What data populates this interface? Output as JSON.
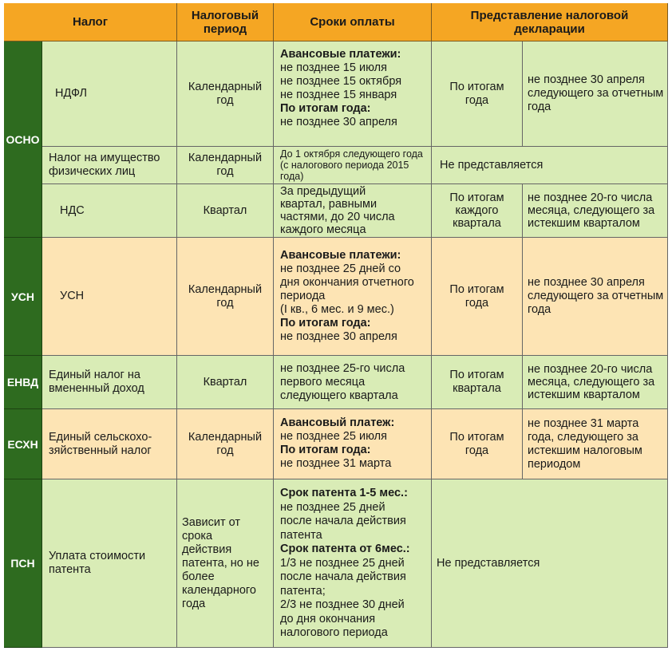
{
  "header": {
    "tax": "Налог",
    "period": "Налоговый период",
    "payment": "Сроки оплаты",
    "declaration": "Представление налоговой декларации"
  },
  "regimes": {
    "osno": "ОСНО",
    "usn": "УСН",
    "envd": "ЕНВД",
    "eshn": "ЕСХН",
    "psn": "ПСН"
  },
  "rows": {
    "ndfl": {
      "tax": "НДФЛ",
      "period": "Календарный год",
      "payment": [
        {
          "text": "Авансовые платежи:",
          "bold": true
        },
        {
          "text": "не позднее 15 июля",
          "bold": false
        },
        {
          "text": "не позднее 15 октября",
          "bold": false
        },
        {
          "text": "не позднее 15 января",
          "bold": false
        },
        {
          "text": "По итогам года:",
          "bold": true
        },
        {
          "text": "не позднее 30 апреля",
          "bold": false
        }
      ],
      "decl_when": "По итогам года",
      "decl_deadline": "не позднее 30 апреля следующего за отчетным года"
    },
    "property": {
      "tax": "Налог на имущество физических лиц",
      "period": "Календарный год",
      "payment": "До 1 октября следующего года (с налогового периода 2015 года)",
      "declaration": "Не представляется"
    },
    "nds": {
      "tax": "НДС",
      "period": "Квартал",
      "payment": "За предыдущий квартал, равными частями, до 20 числа каждого месяца",
      "decl_when": "По итогам каждого квартала",
      "decl_deadline": "не позднее 20-го числа месяца, следующего за истекшим кварталом"
    },
    "usn": {
      "tax": "УСН",
      "period": "Календарный год",
      "payment": [
        {
          "text": "Авансовые платежи:",
          "bold": true
        },
        {
          "text": "не позднее 25 дней со",
          "bold": false
        },
        {
          "text": "дня окончания отчетного",
          "bold": false
        },
        {
          "text": "периода",
          "bold": false
        },
        {
          "text": "(I кв., 6 мес. и 9 мес.)",
          "bold": false
        },
        {
          "text": "По итогам года:",
          "bold": true
        },
        {
          "text": "не позднее 30 апреля",
          "bold": false
        }
      ],
      "decl_when": "По итогам года",
      "decl_deadline": "не позднее 30 апреля следующего за отчетным года"
    },
    "envd": {
      "tax": "Единый налог на вмененный доход",
      "period": "Квартал",
      "payment": "не позднее 25-го числа первого месяца следующего квартала",
      "decl_when": "По итогам квартала",
      "decl_deadline": "не позднее 20-го числа месяца, следующего за истекшим кварталом"
    },
    "eshn": {
      "tax": "Единый сельскохо-зяйственный налог",
      "period": "Календарный год",
      "payment": [
        {
          "text": "Авансовый платеж:",
          "bold": true
        },
        {
          "text": "не позднее 25 июля",
          "bold": false
        },
        {
          "text": "По итогам года:",
          "bold": true
        },
        {
          "text": "не позднее 31 марта",
          "bold": false
        }
      ],
      "decl_when": "По итогам года",
      "decl_deadline": "не позднее 31 марта года, следующего за истекшим налоговым периодом"
    },
    "psn": {
      "tax": "Уплата стоимости патента",
      "period": "Зависит от срока действия патента, но не более календарного года",
      "payment": [
        {
          "text": "Срок патента 1-5 мес.:",
          "bold": true
        },
        {
          "text": "не позднее 25 дней",
          "bold": false
        },
        {
          "text": "после начала действия",
          "bold": false
        },
        {
          "text": "патента",
          "bold": false
        },
        {
          "text": "Срок патента от 6мес.:",
          "bold": true
        },
        {
          "text": "1/3 не позднее 25 дней",
          "bold": false
        },
        {
          "text": "после начала действия",
          "bold": false
        },
        {
          "text": "патента;",
          "bold": false
        },
        {
          "text": "2/3 не позднее 30 дней",
          "bold": false
        },
        {
          "text": "до дня окончания",
          "bold": false
        },
        {
          "text": "налогового периода",
          "bold": false
        }
      ],
      "declaration": "Не представляется"
    }
  }
}
